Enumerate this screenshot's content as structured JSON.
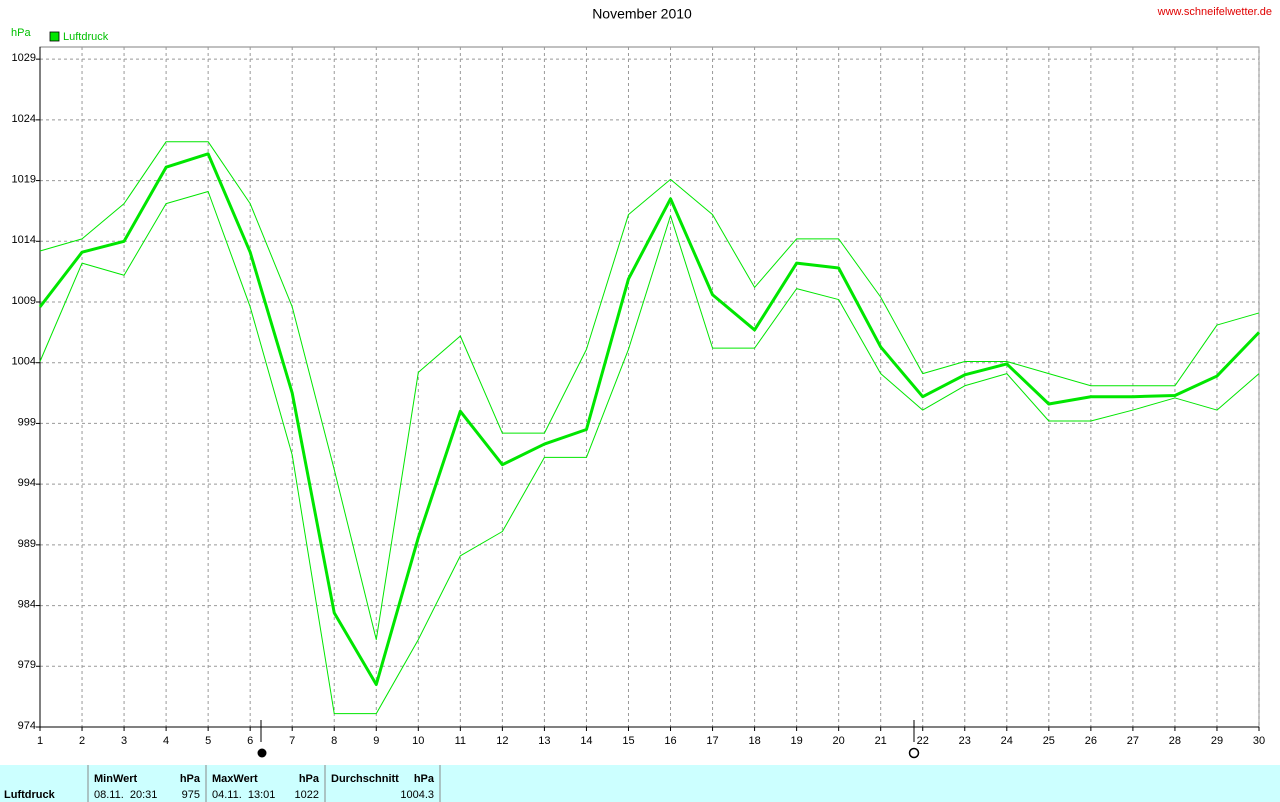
{
  "chart_data": {
    "type": "line",
    "title": "November 2010",
    "source": "www.schneifelwetter.de",
    "y_unit": "hPa",
    "legend": "top-left",
    "grid": true,
    "x": [
      1,
      2,
      3,
      4,
      5,
      6,
      7,
      8,
      9,
      10,
      11,
      12,
      13,
      14,
      15,
      16,
      17,
      18,
      19,
      20,
      21,
      22,
      23,
      24,
      25,
      26,
      27,
      28,
      29,
      30
    ],
    "xlim": [
      1,
      30
    ],
    "xticks": [
      1,
      2,
      3,
      4,
      5,
      6,
      7,
      8,
      9,
      10,
      11,
      12,
      13,
      14,
      15,
      16,
      17,
      18,
      19,
      20,
      21,
      22,
      23,
      24,
      25,
      26,
      27,
      28,
      29,
      30
    ],
    "ylim": [
      974,
      1030
    ],
    "yticks": [
      974,
      979,
      984,
      989,
      994,
      999,
      1004,
      1009,
      1014,
      1019,
      1024,
      1029
    ],
    "series": [
      {
        "name": "Luftdruck",
        "color": "#00e600",
        "line_width": 3,
        "values": [
          1008.6,
          1013.1,
          1014.0,
          1020.1,
          1021.2,
          1013.1,
          1001.5,
          983.4,
          977.5,
          989.6,
          1000.0,
          995.6,
          997.3,
          998.5,
          1010.9,
          1017.5,
          1009.6,
          1006.7,
          1012.2,
          1011.8,
          1005.3,
          1001.2,
          1003.0,
          1003.9,
          1000.6,
          1001.2,
          1001.2,
          1001.3,
          1002.9,
          1006.5
        ]
      },
      {
        "color": "#00e600",
        "line_width": 1,
        "values": [
          1013.2,
          1014.2,
          1017.1,
          1022.2,
          1022.2,
          1017.1,
          1008.6,
          995.2,
          981.2,
          1003.2,
          1006.2,
          998.2,
          998.2,
          1005.1,
          1016.2,
          1019.1,
          1016.2,
          1010.2,
          1014.2,
          1014.2,
          1009.4,
          1003.1,
          1004.1,
          1004.1,
          1003.1,
          1002.1,
          1002.1,
          1002.1,
          1007.1,
          1008.1
        ]
      },
      {
        "color": "#00e600",
        "line_width": 1,
        "values": [
          1004.1,
          1012.2,
          1011.2,
          1017.1,
          1018.1,
          1008.6,
          996.4,
          975.1,
          975.1,
          981.2,
          988.1,
          990.1,
          996.2,
          996.2,
          1005.1,
          1016.1,
          1005.2,
          1005.2,
          1010.1,
          1009.2,
          1003.1,
          1000.1,
          1002.1,
          1003.1,
          999.2,
          999.2,
          1000.1,
          1001.1,
          1000.1,
          1003.1
        ]
      }
    ]
  },
  "summary": {
    "row_label": "Luftdruck",
    "columns": [
      {
        "header": "MinWert",
        "unit": "hPa",
        "time": "08.11.  20:31",
        "value": 975
      },
      {
        "header": "MaxWert",
        "unit": "hPa",
        "time": "04.11.  13:01",
        "value": 1022
      },
      {
        "header": "Durchschnitt",
        "unit": "hPa",
        "value": 1004.3
      }
    ]
  }
}
